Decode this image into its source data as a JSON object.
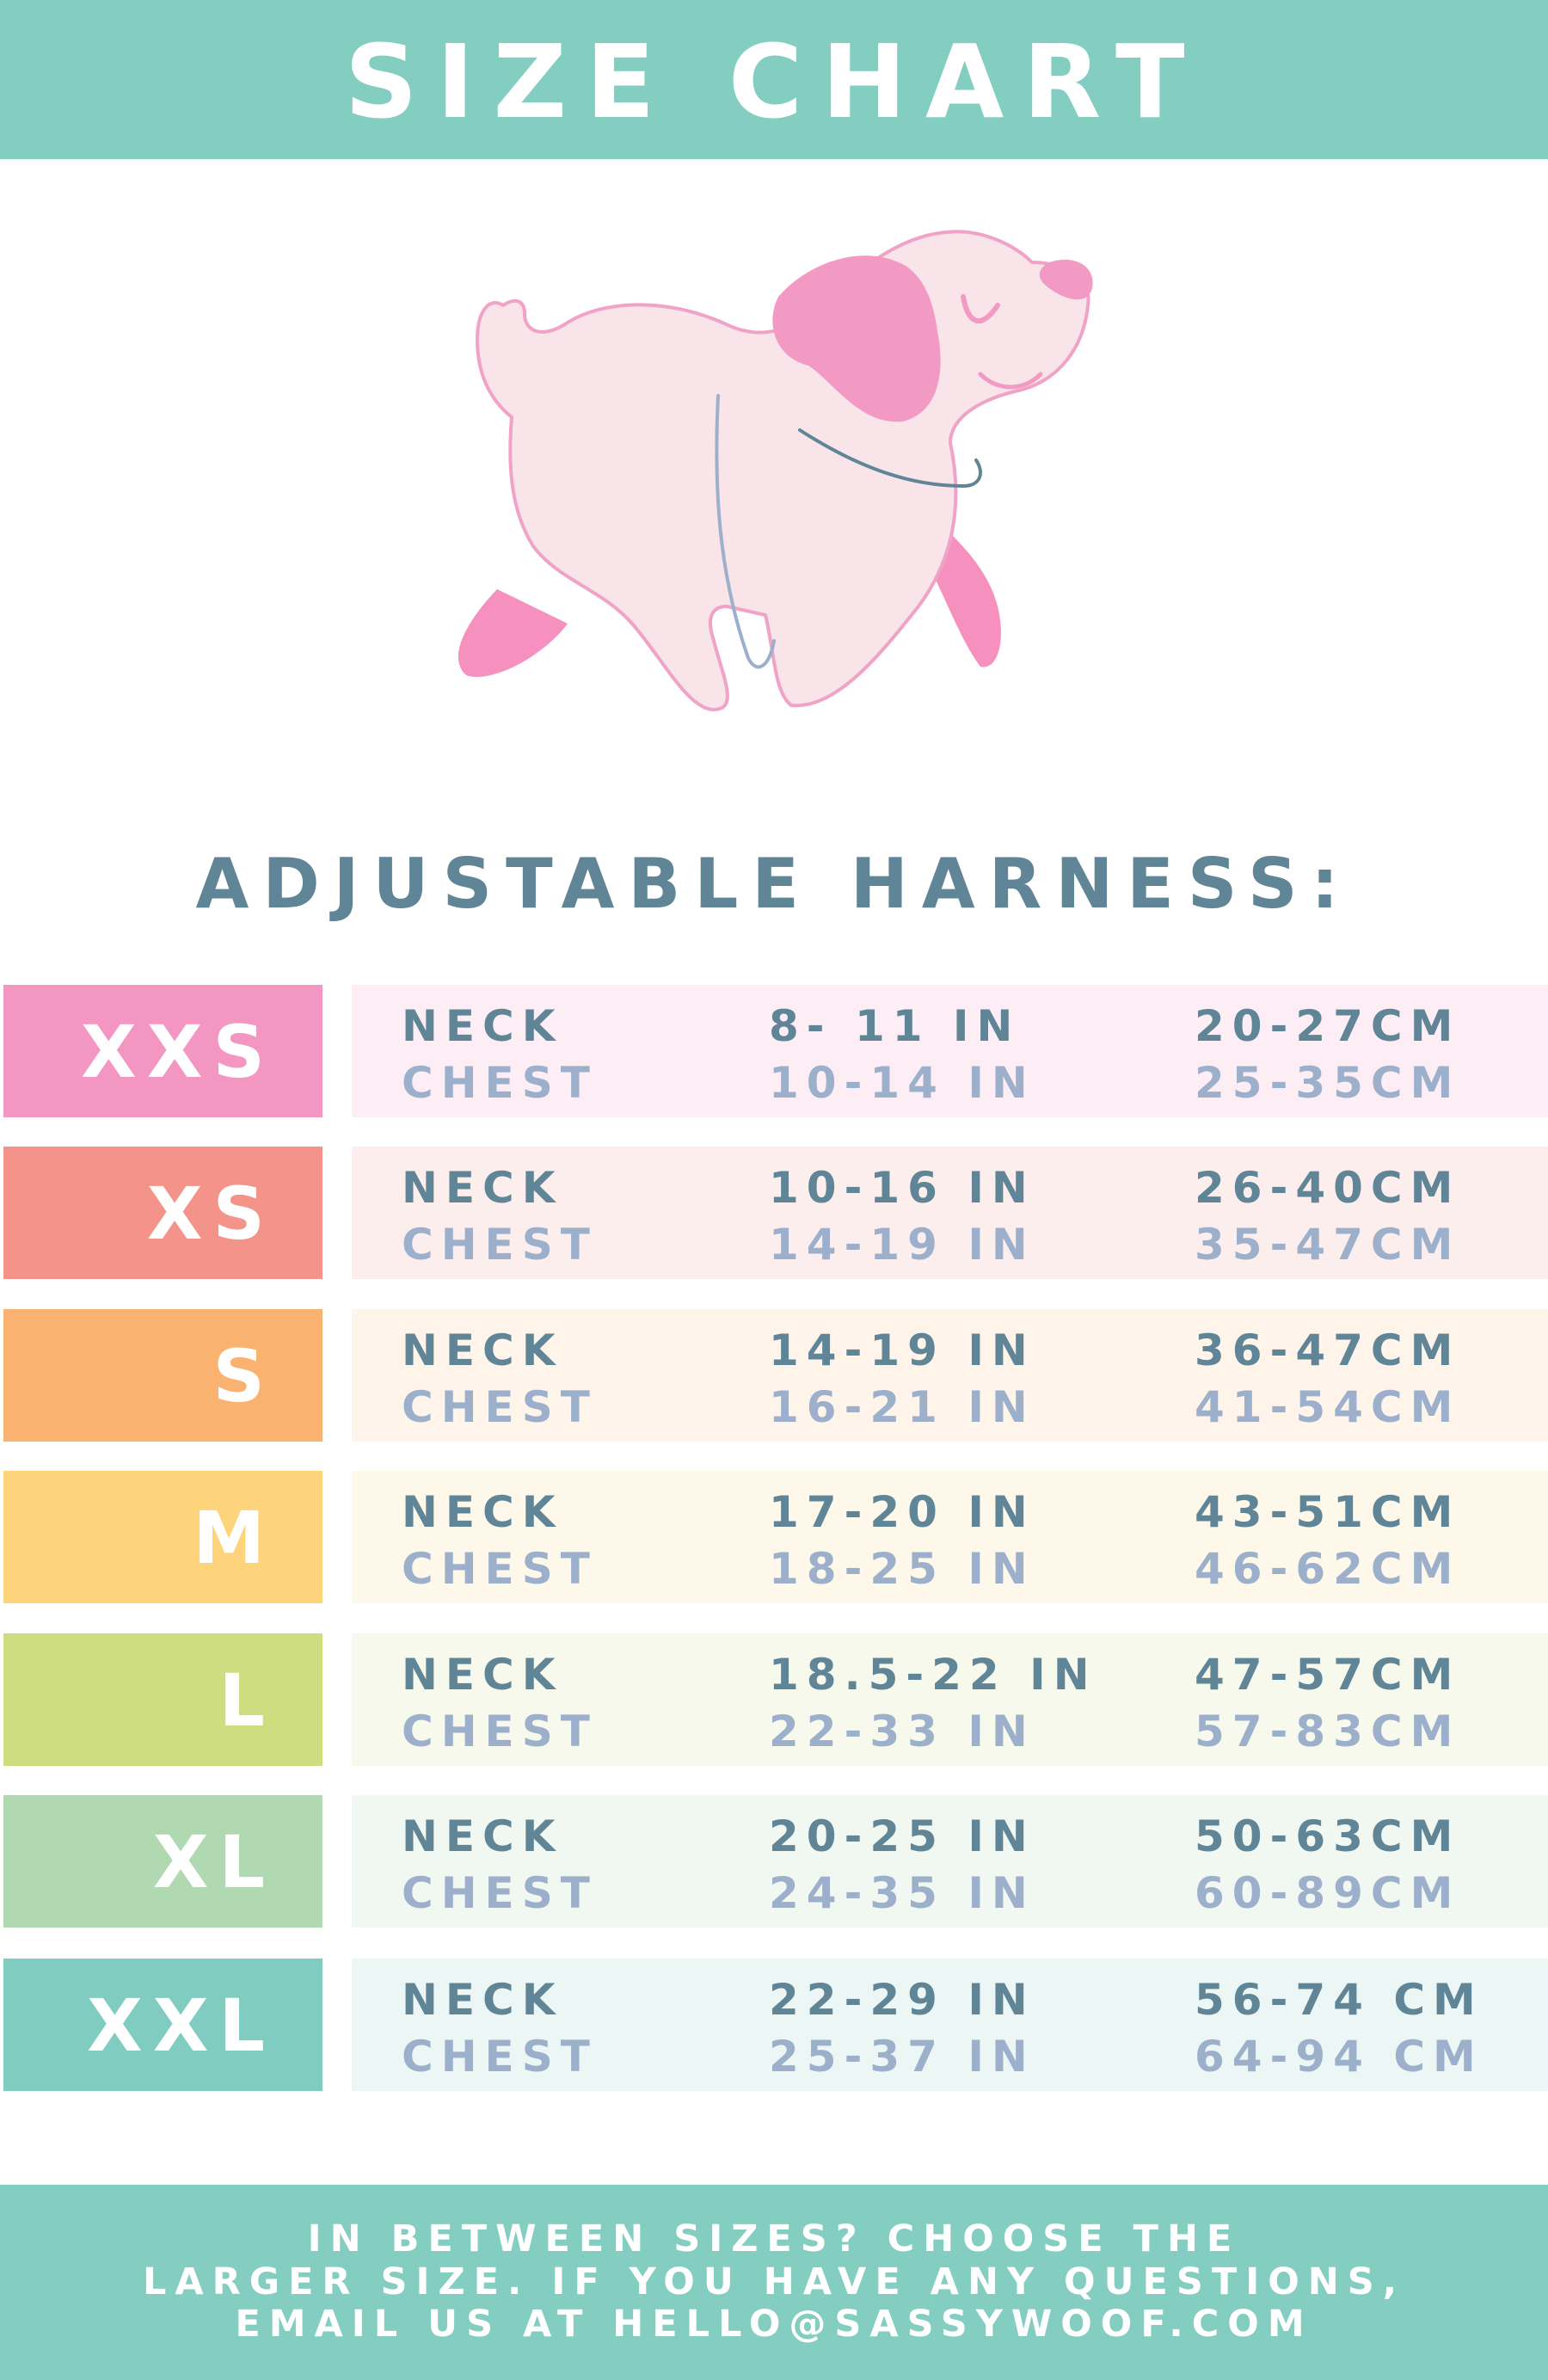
{
  "header": {
    "title": "SIZE CHART"
  },
  "subtitle": "ADJUSTABLE HARNESS:",
  "illustration": {
    "icon": "pink-dog-with-harness-measure-lines",
    "body_color": "#f9e4ea",
    "accent_color": "#f39ac4",
    "line_color": "#5f8597"
  },
  "colors": {
    "dark_text": "#5f8597",
    "light_text": "#9db0cb",
    "teal": "#83cdc1"
  },
  "rows": [
    {
      "size": "XXS",
      "color": "#f397c2",
      "bg": "#fdeef5",
      "neck_label": "NECK",
      "chest_label": "CHEST",
      "neck_in": "8-  11 IN",
      "chest_in": "10-14 IN",
      "neck_cm": "20-27CM",
      "chest_cm": "25-35CM"
    },
    {
      "size": "XS",
      "color": "#f4938a",
      "bg": "#fdeeee",
      "neck_label": "NECK",
      "chest_label": "CHEST",
      "neck_in": "10-16 IN",
      "chest_in": "14-19 IN",
      "neck_cm": "26-40CM",
      "chest_cm": "35-47CM"
    },
    {
      "size": "S",
      "color": "#f9b26f",
      "bg": "#fef4ea",
      "neck_label": "NECK",
      "chest_label": "CHEST",
      "neck_in": "14-19 IN",
      "chest_in": "16-21 IN",
      "neck_cm": "36-47CM",
      "chest_cm": "41-54CM"
    },
    {
      "size": "M",
      "color": "#fdd47c",
      "bg": "#fef8ea",
      "neck_label": "NECK",
      "chest_label": "CHEST",
      "neck_in": "17-20 IN",
      "chest_in": "18-25 IN",
      "neck_cm": "43-51CM",
      "chest_cm": "46-62CM"
    },
    {
      "size": "L",
      "color": "#cedd7f",
      "bg": "#f6f9ec",
      "neck_label": "NECK",
      "chest_label": "CHEST",
      "neck_in": "18.5-22 IN",
      "chest_in": "22-33 IN",
      "neck_cm": "47-57CM",
      "chest_cm": "57-83CM"
    },
    {
      "size": "XL",
      "color": "#b0d9b1",
      "bg": "#f1f7f1",
      "neck_label": "NECK",
      "chest_label": "CHEST",
      "neck_in": "20-25 IN",
      "chest_in": "24-35 IN",
      "neck_cm": "50-63CM",
      "chest_cm": "60-89CM"
    },
    {
      "size": "XXL",
      "color": "#80ccc0",
      "bg": "#ecf7f5",
      "neck_label": "NECK",
      "chest_label": "CHEST",
      "neck_in": "22-29 IN",
      "chest_in": "25-37 IN",
      "neck_cm": "56-74 CM",
      "chest_cm": "64-94 CM"
    }
  ],
  "footer": {
    "lines": [
      "IN BETWEEN SIZES? CHOOSE THE",
      "LARGER SIZE. IF YOU HAVE ANY QUESTIONS,",
      "EMAIL US AT HELLO@SASSYWOOF.COM"
    ]
  }
}
